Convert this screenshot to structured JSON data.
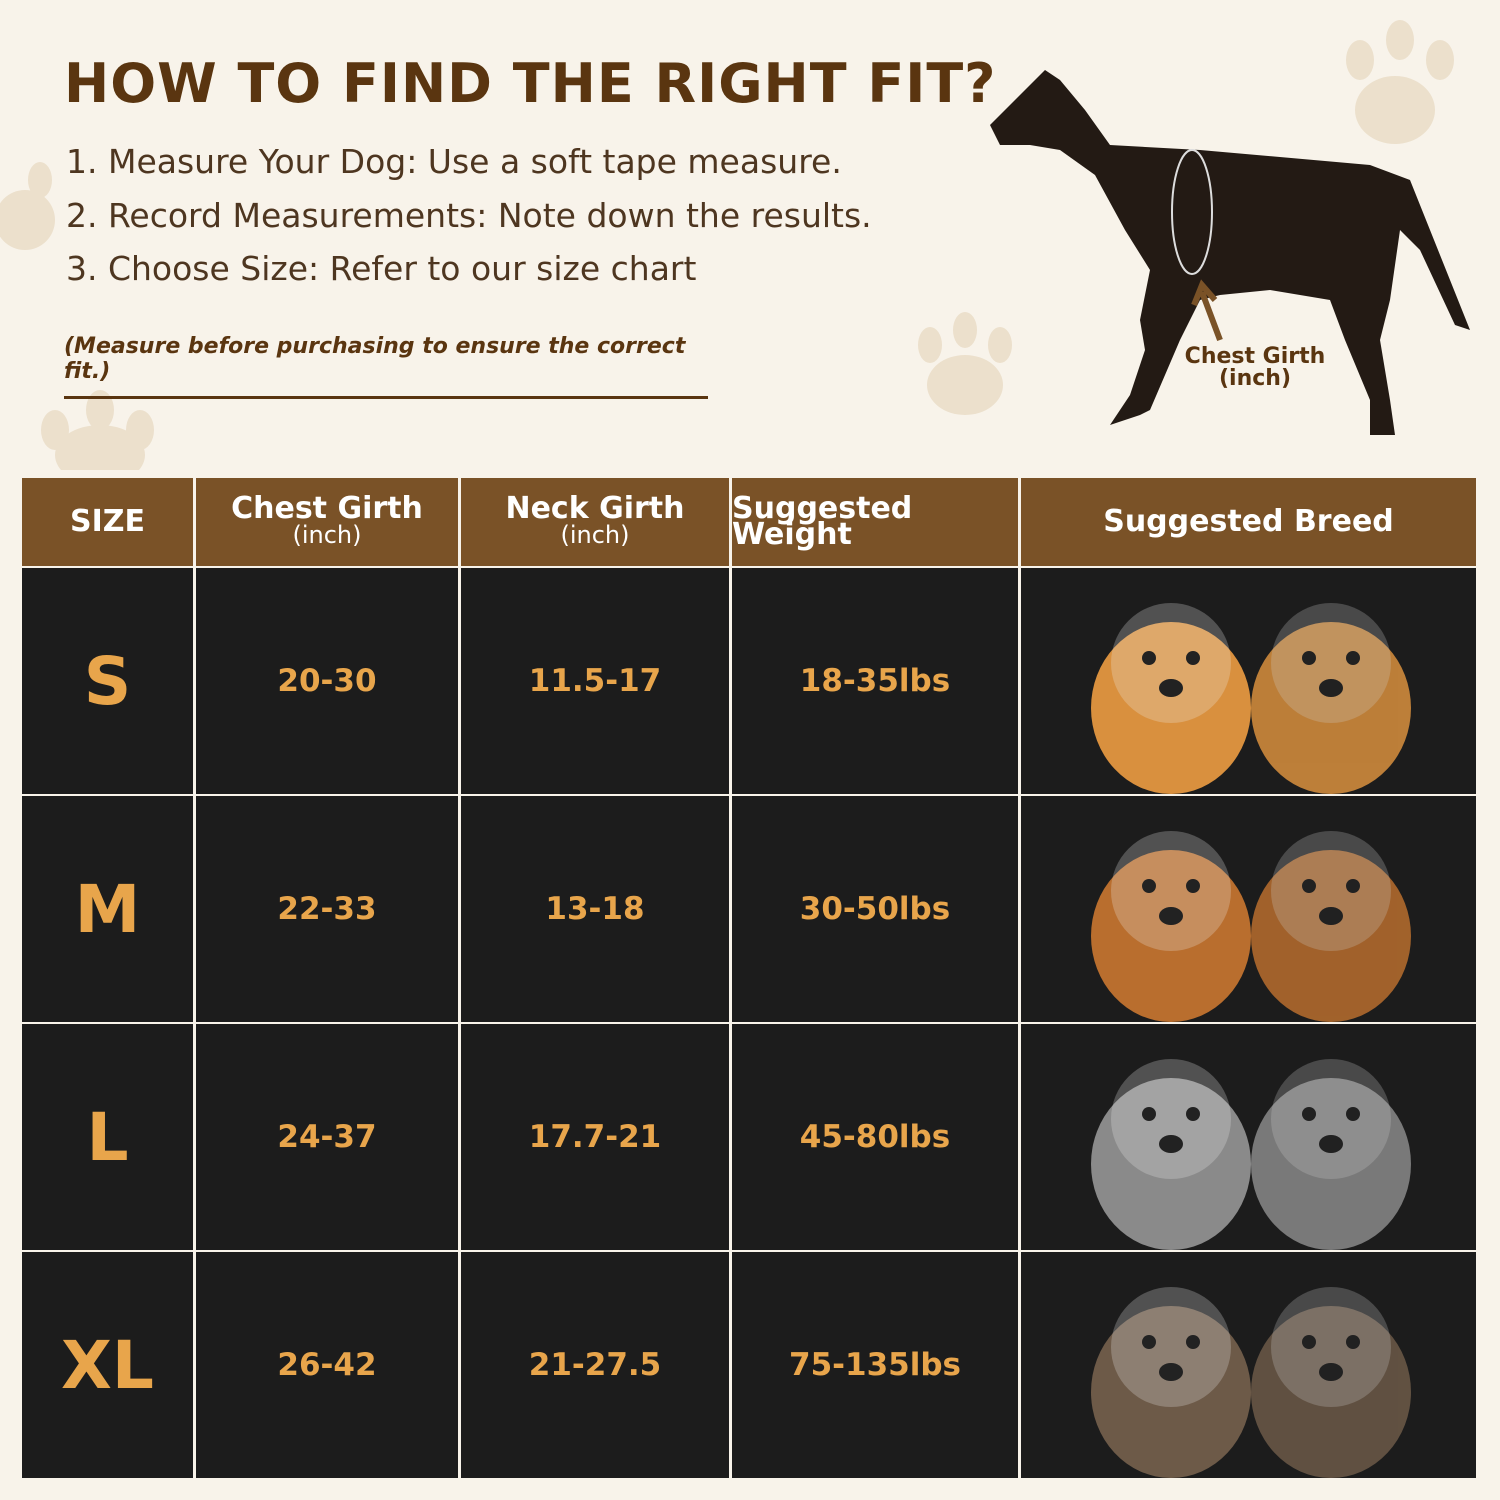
{
  "header": {
    "title": "HOW TO FIND THE RIGHT FIT?",
    "steps": [
      "1. Measure Your Dog: Use a soft tape measure.",
      "2. Record Measurements: Note down the results.",
      "3. Choose Size: Refer to our size chart"
    ],
    "note": "(Measure before purchasing to ensure the correct fit.)"
  },
  "diagram": {
    "label": "Chest Girth",
    "unit": "(inch)"
  },
  "table": {
    "columns": [
      {
        "label": "SIZE"
      },
      {
        "label": "Chest Girth",
        "unit": "(inch)"
      },
      {
        "label": "Neck Girth",
        "unit": "(inch)"
      },
      {
        "label": "Suggested Weight"
      },
      {
        "label": "Suggested Breed"
      }
    ],
    "rows": [
      [
        "S",
        "20-30",
        "11.5-17",
        "18-35lbs"
      ],
      [
        "M",
        "22-33",
        "13-18",
        "30-50lbs"
      ],
      [
        "L",
        "24-37",
        "17.7-21",
        "45-80lbs"
      ],
      [
        "XL",
        "26-42",
        "21-27.5",
        "75-135lbs"
      ]
    ]
  }
}
